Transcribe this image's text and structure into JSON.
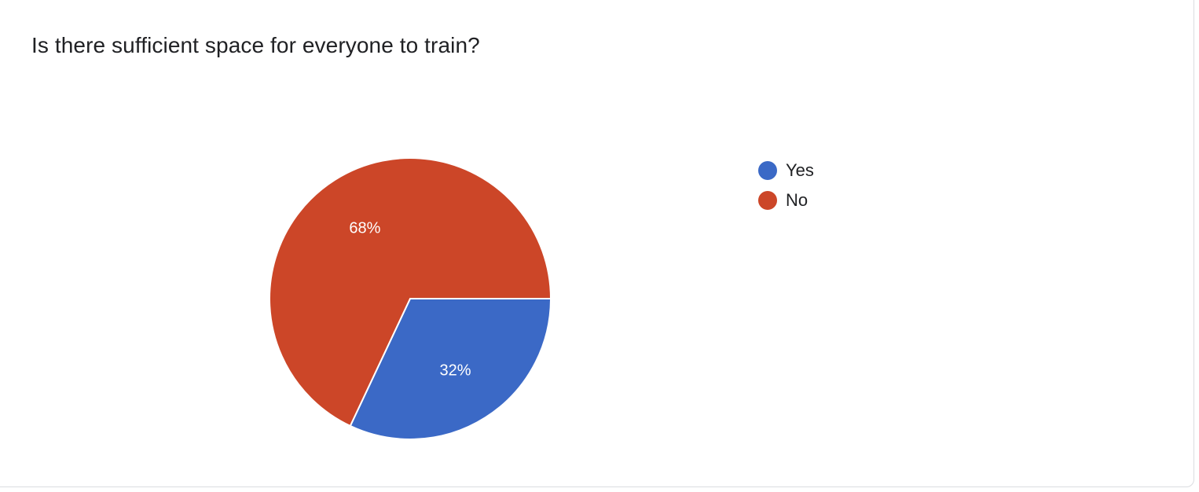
{
  "chart_data": {
    "type": "pie",
    "title": "Is there sufficient space for everyone to train?",
    "categories": [
      "Yes",
      "No"
    ],
    "values": [
      32,
      68
    ],
    "labels": [
      "32%",
      "68%"
    ],
    "colors": [
      "#3b69c6",
      "#cc4628"
    ],
    "legend_position": "right"
  }
}
